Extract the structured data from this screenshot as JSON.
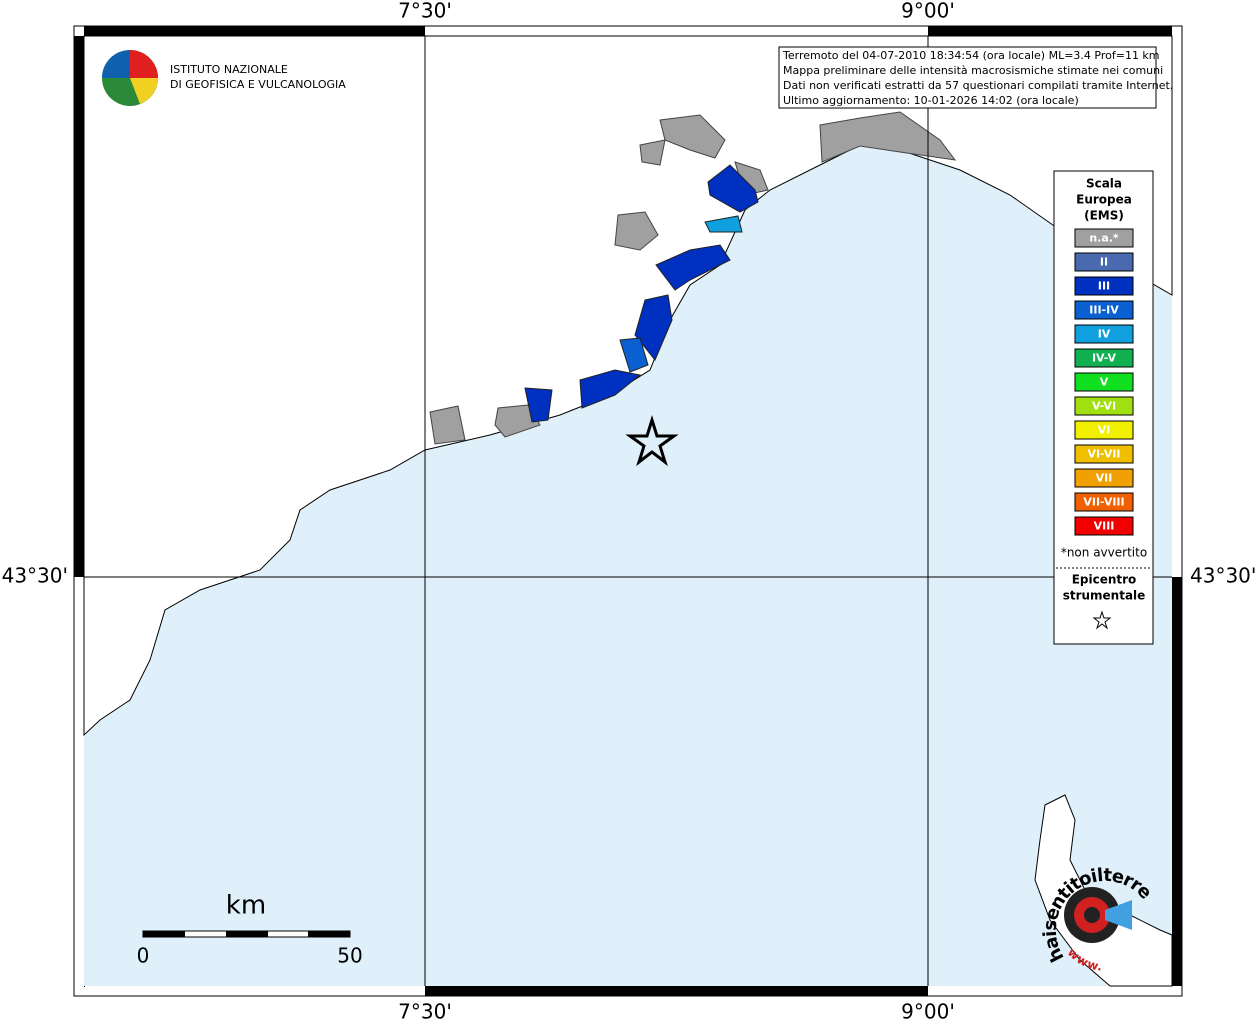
{
  "axes": {
    "top": [
      "7°30'",
      "9°00'"
    ],
    "bottom": [
      "7°30'",
      "9°00'"
    ],
    "left": [
      "43°30'"
    ],
    "right": [
      "43°30'"
    ]
  },
  "info": {
    "lines": [
      "Terremoto del 04-07-2010 18:34:54 (ora locale) ML=3.4 Prof=11 km",
      "Mappa preliminare delle intensità macrosismiche stimate nei comuni",
      "Dati non verificati estratti da 57 questionari compilati tramite Internet.",
      "Ultimo aggiornamento: 10-01-2026 14:02 (ora locale)"
    ]
  },
  "logo": {
    "lines": [
      "ISTITUTO NAZIONALE",
      "DI GEOFISICA E VULCANOLOGIA"
    ]
  },
  "legend": {
    "title": [
      "Scala",
      "Europea",
      "(EMS)"
    ],
    "items": [
      {
        "label": "n.a.*",
        "color": "#a0a0a0"
      },
      {
        "label": "II",
        "color": "#4a6ab0"
      },
      {
        "label": "III",
        "color": "#0030c0"
      },
      {
        "label": "III-IV",
        "color": "#0a60d0"
      },
      {
        "label": "IV",
        "color": "#10a0e0"
      },
      {
        "label": "IV-V",
        "color": "#10b050"
      },
      {
        "label": "V",
        "color": "#10e020"
      },
      {
        "label": "V-VI",
        "color": "#a0e010"
      },
      {
        "label": "VI",
        "color": "#f0f000"
      },
      {
        "label": "VI-VII",
        "color": "#f0c000"
      },
      {
        "label": "VII",
        "color": "#f0a000"
      },
      {
        "label": "VII-VIII",
        "color": "#f06000"
      },
      {
        "label": "VIII",
        "color": "#f00000"
      }
    ],
    "note": "*non avvertito",
    "epicentre": [
      "Epicentro",
      "strumentale"
    ]
  },
  "scalebar": {
    "unit": "km",
    "labels": [
      "0",
      "50"
    ]
  },
  "watermark": {
    "site": "haisentitoilterremoto.it",
    "prefix": "www."
  }
}
